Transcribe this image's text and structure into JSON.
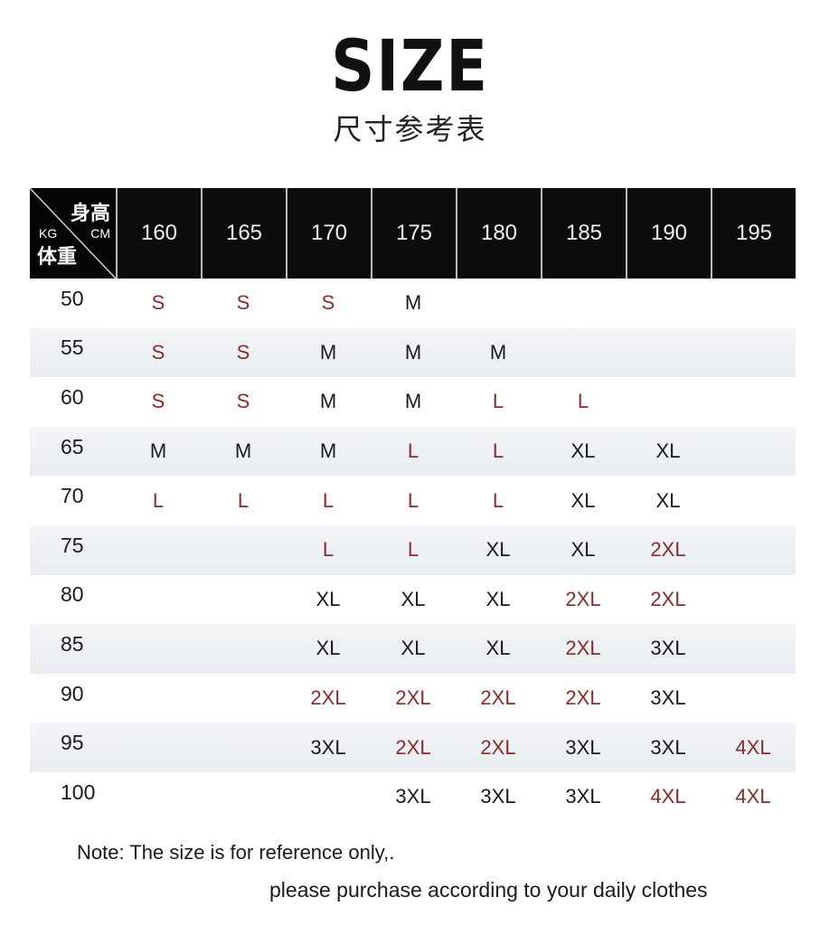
{
  "title": "SIZE",
  "subtitle": "尺寸参考表",
  "header": {
    "height_label": "身高",
    "height_unit": "CM",
    "weight_unit": "KG",
    "weight_label": "体重"
  },
  "heights": [
    "160",
    "165",
    "170",
    "175",
    "180",
    "185",
    "190",
    "195"
  ],
  "rows": [
    {
      "weight": "50",
      "sizes": [
        "S",
        "S",
        "S",
        "M",
        "",
        "",
        "",
        ""
      ]
    },
    {
      "weight": "55",
      "sizes": [
        "S",
        "S",
        "M",
        "M",
        "M",
        "",
        "",
        ""
      ]
    },
    {
      "weight": "60",
      "sizes": [
        "S",
        "S",
        "M",
        "M",
        "L",
        "L",
        "",
        ""
      ]
    },
    {
      "weight": "65",
      "sizes": [
        "M",
        "M",
        "M",
        "L",
        "L",
        "XL",
        "XL",
        ""
      ]
    },
    {
      "weight": "70",
      "sizes": [
        "L",
        "L",
        "L",
        "L",
        "L",
        "XL",
        "XL",
        ""
      ]
    },
    {
      "weight": "75",
      "sizes": [
        "",
        "",
        "L",
        "L",
        "XL",
        "XL",
        "2XL",
        ""
      ]
    },
    {
      "weight": "80",
      "sizes": [
        "",
        "",
        "XL",
        "XL",
        "XL",
        "2XL",
        "2XL",
        ""
      ]
    },
    {
      "weight": "85",
      "sizes": [
        "",
        "",
        "XL",
        "XL",
        "XL",
        "2XL",
        "3XL",
        ""
      ]
    },
    {
      "weight": "90",
      "sizes": [
        "",
        "",
        "2XL",
        "2XL",
        "2XL",
        "2XL",
        "3XL",
        ""
      ]
    },
    {
      "weight": "95",
      "sizes": [
        "",
        "",
        "3XL",
        "2XL",
        "2XL",
        "3XL",
        "3XL",
        "4XL"
      ]
    },
    {
      "weight": "100",
      "sizes": [
        "",
        "",
        "",
        "3XL",
        "3XL",
        "3XL",
        "4XL",
        "4XL"
      ]
    }
  ],
  "size_colors": {
    "S": "#8b2a2a",
    "M": "#1a1a1a",
    "L": "#8b2a2a",
    "XL": "#1a1a1a",
    "2XL": "#8b2a2a",
    "3XL": "#1a1a1a",
    "4XL": "#8b2a2a"
  },
  "notes": {
    "line1": "Note: The size is for reference only,.",
    "line2": "please purchase according to your daily clothes"
  }
}
